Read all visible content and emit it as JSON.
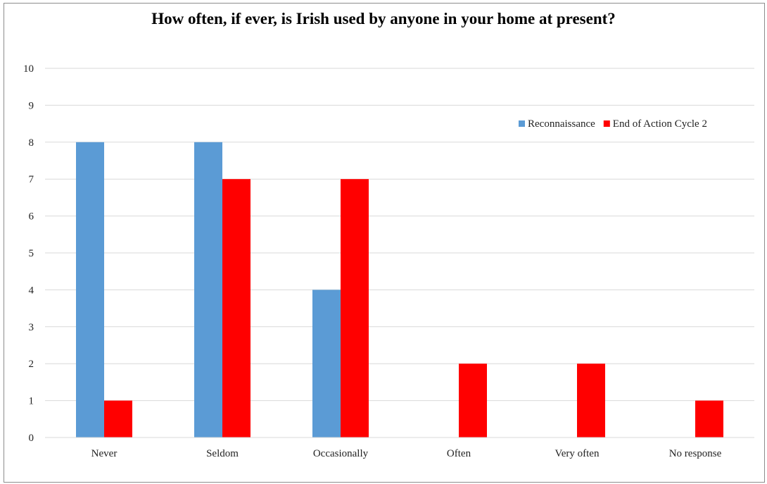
{
  "chart_data": {
    "type": "bar",
    "title": "How often, if ever, is Irish used by anyone in your home at present?",
    "xlabel": "",
    "ylabel": "",
    "categories": [
      "Never",
      "Seldom",
      "Occasionally",
      "Often",
      "Very often",
      "No response"
    ],
    "series": [
      {
        "name": "Reconnaissance",
        "color": "#5b9bd5",
        "values": [
          8,
          8,
          4,
          0,
          0,
          0
        ]
      },
      {
        "name": "End of Action Cycle 2",
        "color": "#ff0000",
        "values": [
          1,
          7,
          7,
          2,
          2,
          1
        ]
      }
    ],
    "ylim": [
      0,
      10
    ],
    "yticks": [
      0,
      1,
      2,
      3,
      4,
      5,
      6,
      7,
      8,
      9,
      10
    ],
    "grid": true,
    "legend_position": "top-right"
  }
}
